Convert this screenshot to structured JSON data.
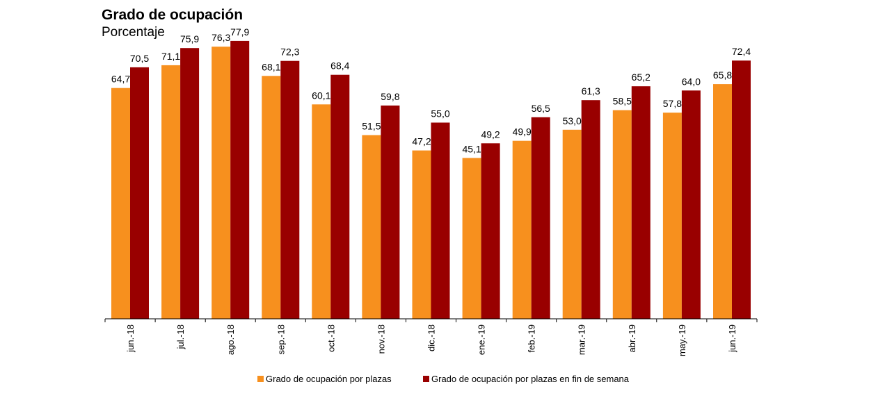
{
  "chart_data": {
    "type": "bar",
    "title": "Grado de ocupación",
    "subtitle": "Porcentaje",
    "categories": [
      "jun.-18",
      "jul.-18",
      "ago.-18",
      "sep.-18",
      "oct.-18",
      "nov.-18",
      "dic.-18",
      "ene.-19",
      "feb.-19",
      "mar.-19",
      "abr.-19",
      "may.-19",
      "jun.-19"
    ],
    "labels": [
      [
        "64,7",
        "71,1",
        "76,3",
        "68,1",
        "60,1",
        "51,5",
        "47,2",
        "45,1",
        "49,9",
        "53,0",
        "58,5",
        "57,8",
        "65,8"
      ],
      [
        "70,5",
        "75,9",
        "77,9",
        "72,3",
        "68,4",
        "59,8",
        "55,0",
        "49,2",
        "56,5",
        "61,3",
        "65,2",
        "64,0",
        "72,4"
      ]
    ],
    "series": [
      {
        "name": "Grado de ocupación por plazas",
        "color": "#F7901E",
        "values": [
          64.7,
          71.1,
          76.3,
          68.1,
          60.1,
          51.5,
          47.2,
          45.1,
          49.9,
          53.0,
          58.5,
          57.8,
          65.8
        ]
      },
      {
        "name": "Grado de ocupación por plazas en fin de semana",
        "color": "#990000",
        "values": [
          70.5,
          75.9,
          77.9,
          72.3,
          68.4,
          59.8,
          55.0,
          49.2,
          56.5,
          61.3,
          65.2,
          64.0,
          72.4
        ]
      }
    ],
    "ylim": [
      0,
      80
    ],
    "grid": false,
    "legend": "bottom"
  }
}
